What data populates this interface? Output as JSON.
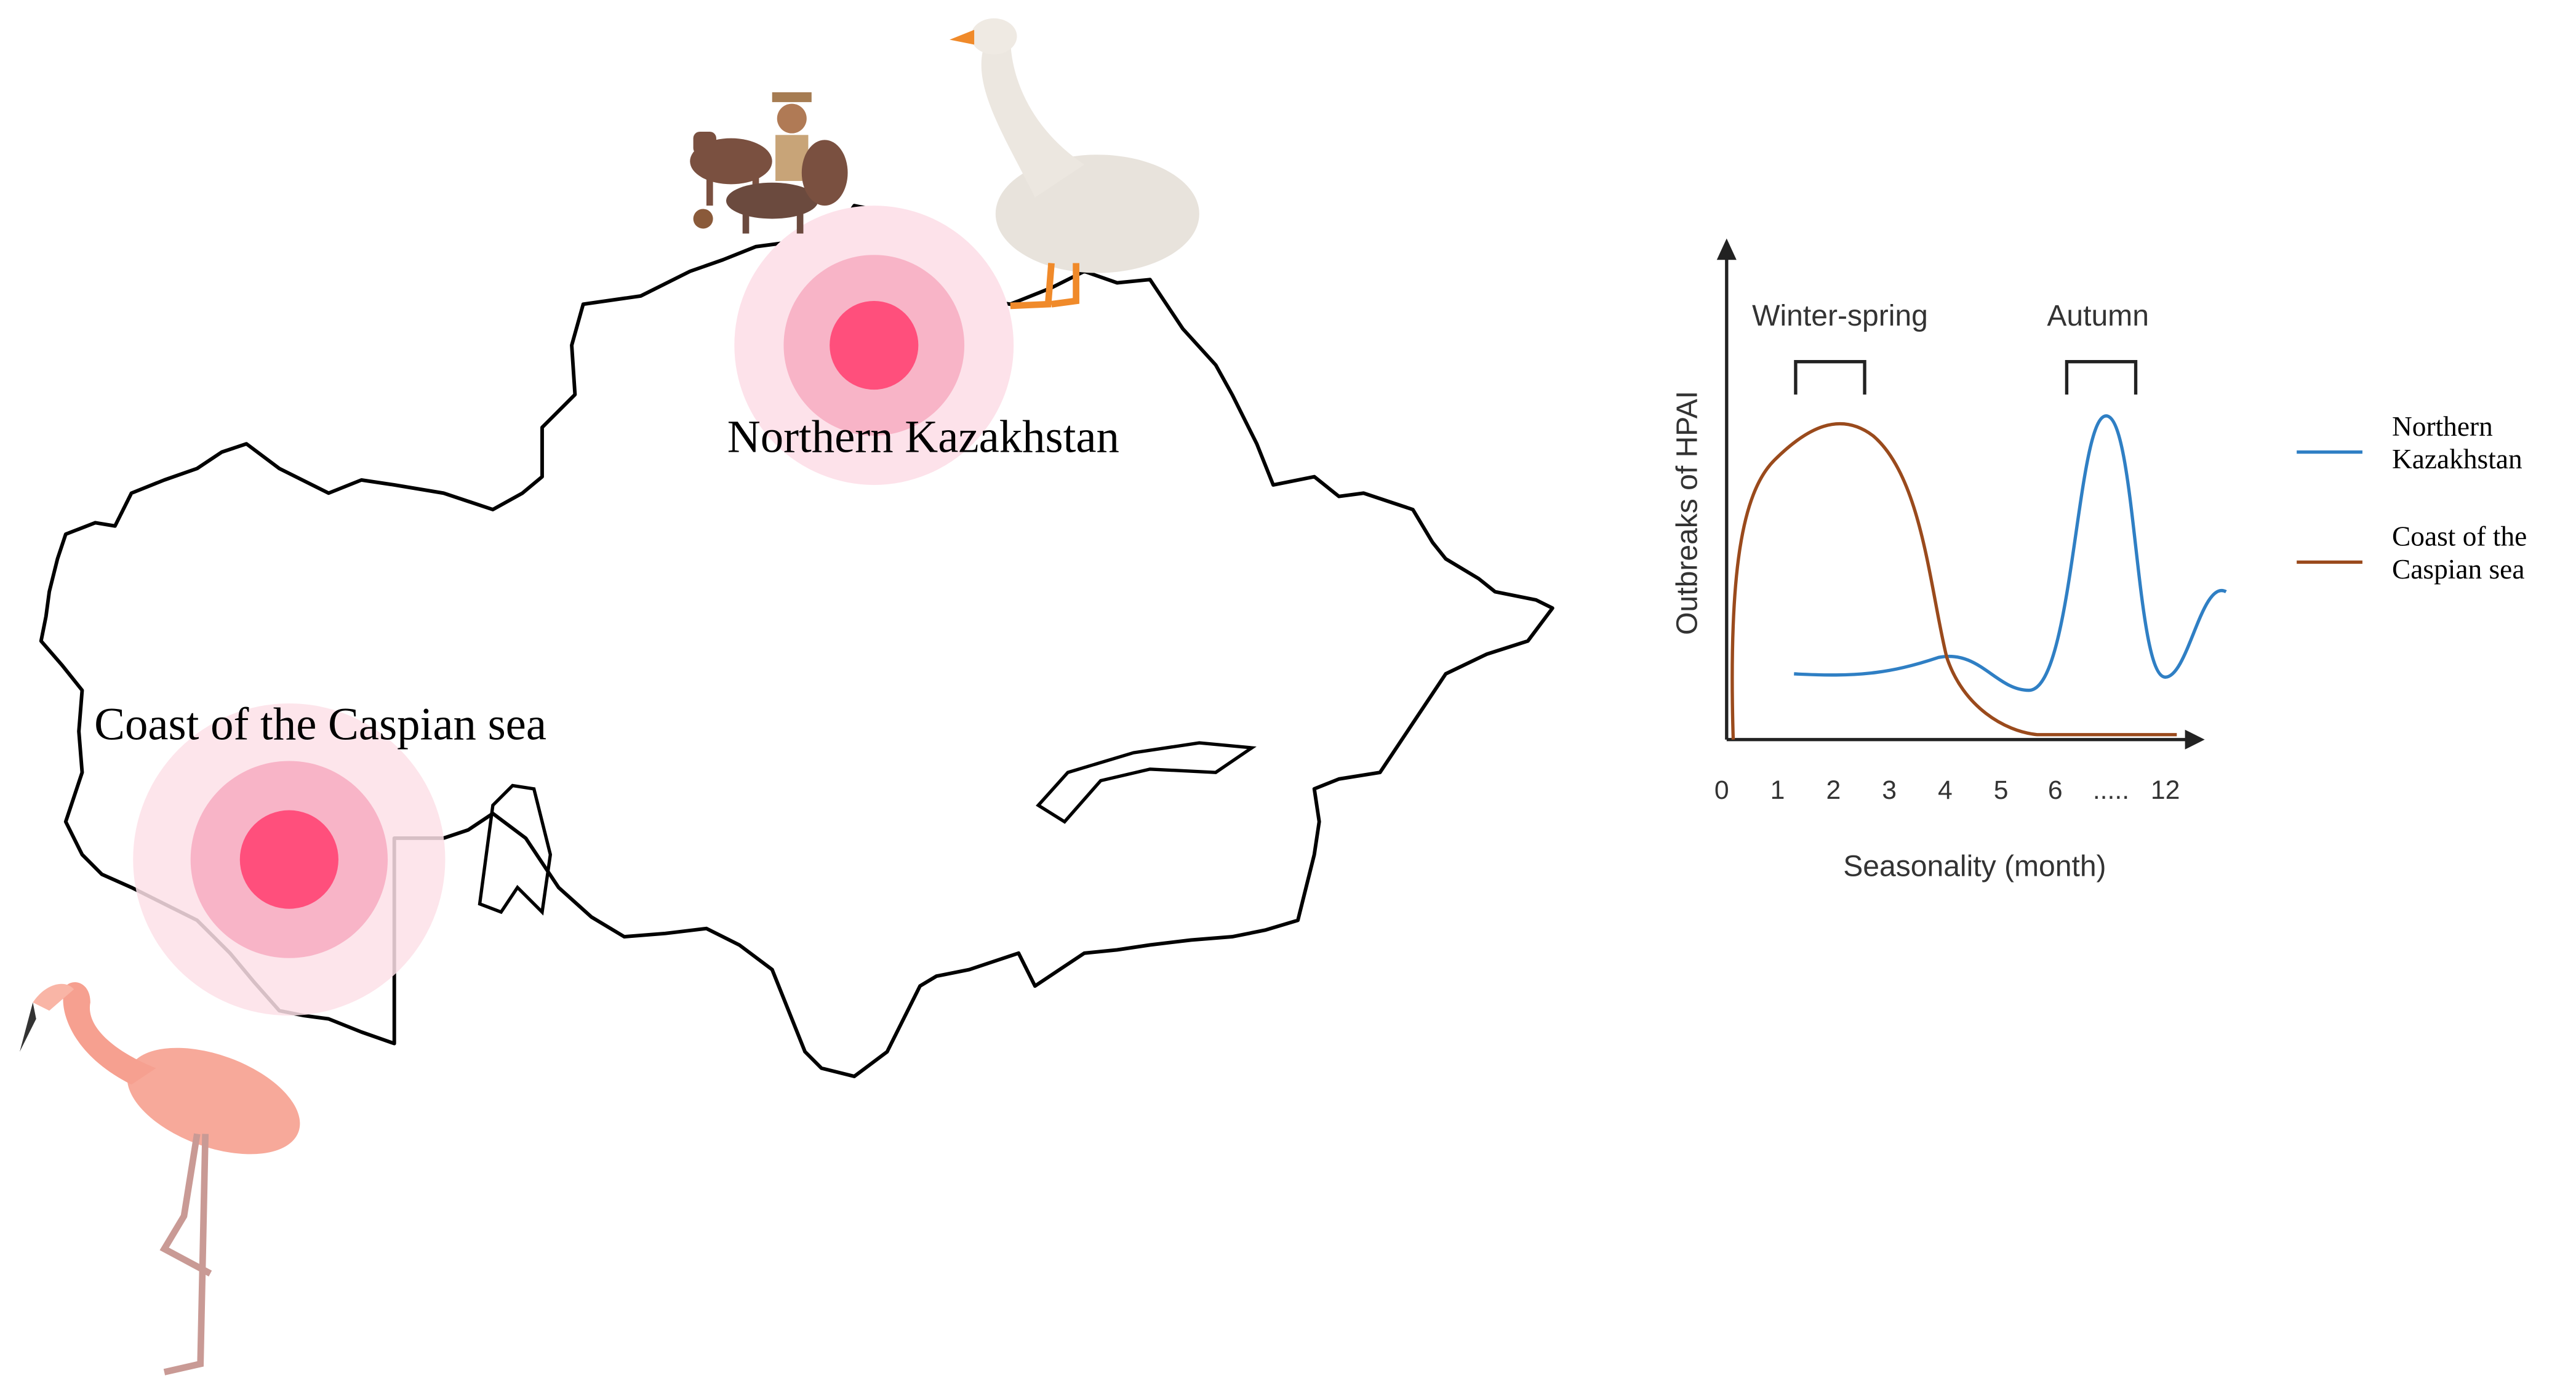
{
  "map": {
    "regions": [
      {
        "label": "Northern Kazakhstan"
      },
      {
        "label": "Coast of the Caspian sea"
      }
    ]
  },
  "chart": {
    "y_axis_label": "Outbreaks of HPAI",
    "x_axis_label": "Seasonality (month)",
    "x_ticks": [
      "0",
      "1",
      "2",
      "3",
      "4",
      "5",
      "6",
      ".....",
      "12"
    ],
    "periods": [
      "Winter-spring",
      "Autumn"
    ],
    "legend": [
      {
        "lines": [
          "Northern",
          "Kazakhstan"
        ],
        "color": "#2f7fc4"
      },
      {
        "lines": [
          "Coast of the",
          "Caspian sea"
        ],
        "color": "#9a4a1c"
      }
    ]
  }
}
